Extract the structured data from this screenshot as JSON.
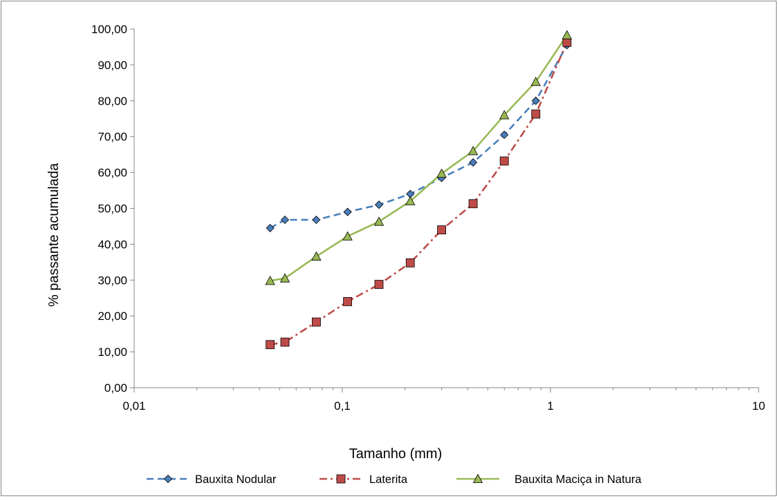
{
  "chart_data": {
    "type": "line",
    "title": "",
    "xlabel": "Tamanho (mm)",
    "ylabel": "% passante acumulada",
    "x_scale": "log",
    "xlim": [
      0.01,
      10
    ],
    "ylim": [
      0,
      100
    ],
    "x_ticks": [
      0.01,
      0.1,
      1,
      10
    ],
    "x_tick_labels": [
      "0,01",
      "0,1",
      "1",
      "10"
    ],
    "y_ticks": [
      0,
      10,
      20,
      30,
      40,
      50,
      60,
      70,
      80,
      90,
      100
    ],
    "y_tick_labels": [
      "0,00",
      "10,00",
      "20,00",
      "30,00",
      "40,00",
      "50,00",
      "60,00",
      "70,00",
      "80,00",
      "90,00",
      "100,00"
    ],
    "grid": false,
    "legend_position": "bottom",
    "series": [
      {
        "name": "Bauxita Nodular",
        "color": "#4A7EBB",
        "line_style": "dashed",
        "marker": "diamond",
        "x": [
          0.045,
          0.053,
          0.075,
          0.106,
          0.15,
          0.212,
          0.3,
          0.425,
          0.6,
          0.85,
          1.2
        ],
        "y": [
          44.5,
          46.8,
          46.8,
          49.0,
          51.0,
          54.0,
          58.5,
          62.8,
          70.5,
          80.0,
          95.5
        ]
      },
      {
        "name": "Laterita",
        "color": "#BE4B48",
        "line_style": "dash-dot",
        "marker": "square",
        "x": [
          0.045,
          0.053,
          0.075,
          0.106,
          0.15,
          0.212,
          0.3,
          0.425,
          0.6,
          0.85,
          1.2
        ],
        "y": [
          12.0,
          12.7,
          18.3,
          24.0,
          28.8,
          34.8,
          44.0,
          51.3,
          63.2,
          76.3,
          96.3
        ]
      },
      {
        "name": "Bauxita Maciça in Natura",
        "color": "#98B954",
        "line_style": "solid",
        "marker": "triangle",
        "x": [
          0.045,
          0.053,
          0.075,
          0.106,
          0.15,
          0.212,
          0.3,
          0.425,
          0.6,
          0.85,
          1.2
        ],
        "y": [
          29.8,
          30.5,
          36.6,
          42.2,
          46.3,
          52.0,
          59.7,
          66.0,
          76.0,
          85.3,
          98.3
        ]
      }
    ]
  }
}
